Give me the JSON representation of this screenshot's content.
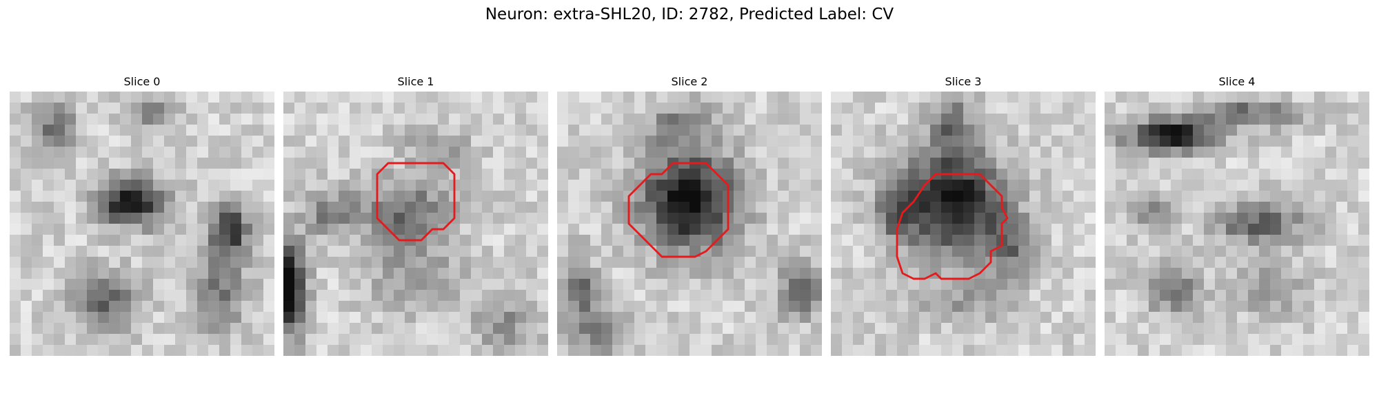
{
  "figure": {
    "title": "Neuron: extra-SHL20, ID: 2782, Predicted Label: CV"
  },
  "colors": {
    "contour": "#e41a1c",
    "background": "#ffffff"
  },
  "slices": [
    {
      "label": "Slice 0",
      "has_contour": false
    },
    {
      "label": "Slice 1",
      "has_contour": true
    },
    {
      "label": "Slice 2",
      "has_contour": true
    },
    {
      "label": "Slice 3",
      "has_contour": true
    },
    {
      "label": "Slice 4",
      "has_contour": false
    }
  ]
}
